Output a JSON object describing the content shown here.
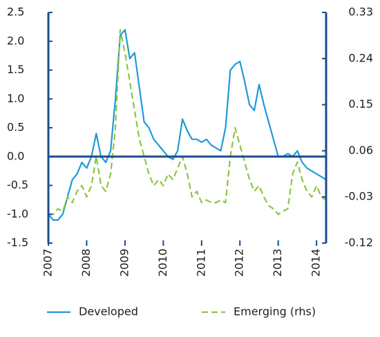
{
  "chart_data": {
    "type": "line",
    "x": [
      2007.0,
      2007.125,
      2007.25,
      2007.375,
      2007.5,
      2007.625,
      2007.75,
      2007.875,
      2008.0,
      2008.125,
      2008.25,
      2008.375,
      2008.5,
      2008.625,
      2008.75,
      2008.875,
      2009.0,
      2009.125,
      2009.25,
      2009.375,
      2009.5,
      2009.625,
      2009.75,
      2009.875,
      2010.0,
      2010.125,
      2010.25,
      2010.375,
      2010.5,
      2010.625,
      2010.75,
      2010.875,
      2011.0,
      2011.125,
      2011.25,
      2011.375,
      2011.5,
      2011.625,
      2011.75,
      2011.875,
      2012.0,
      2012.125,
      2012.25,
      2012.375,
      2012.5,
      2012.625,
      2012.75,
      2012.875,
      2013.0,
      2013.125,
      2013.25,
      2013.375,
      2013.5,
      2013.625,
      2013.75,
      2013.875,
      2014.0,
      2014.125,
      2014.25
    ],
    "xlim": [
      2007,
      2014.25
    ],
    "xticks": [
      2007,
      2008,
      2009,
      2010,
      2011,
      2012,
      2013,
      2014
    ],
    "ylim": [
      -1.5,
      2.5
    ],
    "yticks": [
      {
        "value": -1.5,
        "label": "-1.5"
      },
      {
        "value": -1,
        "label": "-1.0"
      },
      {
        "value": -0.5,
        "label": "-0.5"
      },
      {
        "value": 0,
        "label": "0.0"
      },
      {
        "value": 0.5,
        "label": "0.5"
      },
      {
        "value": 1,
        "label": "1.0"
      },
      {
        "value": 1.5,
        "label": "1.5"
      },
      {
        "value": 2,
        "label": "2.0"
      },
      {
        "value": 2.5,
        "label": "2.5"
      }
    ],
    "y2lim": [
      -0.12,
      0.33
    ],
    "y2ticks": [
      -0.12,
      -0.03,
      0.06,
      0.15,
      0.24,
      0.33
    ],
    "zero_line": true,
    "axis_color": "#1a4b8c",
    "series": [
      {
        "name": "Developed",
        "color": "#1e9ad6",
        "dash": false,
        "values": [
          -1.0,
          -1.1,
          -1.1,
          -1.0,
          -0.7,
          -0.4,
          -0.3,
          -0.1,
          -0.2,
          0.0,
          0.4,
          0.0,
          -0.1,
          0.1,
          1.0,
          2.1,
          2.2,
          1.7,
          1.8,
          1.2,
          0.6,
          0.5,
          0.3,
          0.2,
          0.1,
          0.0,
          -0.05,
          0.1,
          0.65,
          0.45,
          0.3,
          0.3,
          0.25,
          0.3,
          0.2,
          0.15,
          0.1,
          0.5,
          1.5,
          1.6,
          1.65,
          1.3,
          0.9,
          0.8,
          1.25,
          0.9,
          0.6,
          0.3,
          0.0,
          0.0,
          0.05,
          0.0,
          0.1,
          -0.1,
          -0.2,
          -0.25,
          -0.3,
          -0.35,
          -0.4
        ]
      },
      {
        "name": "Emerging (rhs)",
        "color": "#8dc63f",
        "dash": true,
        "axis": "y2",
        "values": [
          -0.064,
          -0.064,
          -0.053,
          -0.058,
          -0.03,
          -0.041,
          -0.019,
          -0.008,
          -0.03,
          -0.008,
          0.049,
          -0.008,
          -0.019,
          0.015,
          0.105,
          0.296,
          0.251,
          0.195,
          0.139,
          0.083,
          0.049,
          0.015,
          -0.008,
          0.004,
          -0.008,
          0.015,
          0.004,
          0.026,
          0.049,
          0.015,
          -0.03,
          -0.019,
          -0.041,
          -0.036,
          -0.041,
          -0.041,
          -0.036,
          -0.041,
          0.049,
          0.105,
          0.071,
          0.038,
          0.004,
          -0.019,
          -0.008,
          -0.03,
          -0.047,
          -0.053,
          -0.064,
          -0.058,
          -0.053,
          0.015,
          0.038,
          0.004,
          -0.019,
          -0.03,
          -0.008,
          -0.03,
          -0.036
        ]
      }
    ]
  }
}
